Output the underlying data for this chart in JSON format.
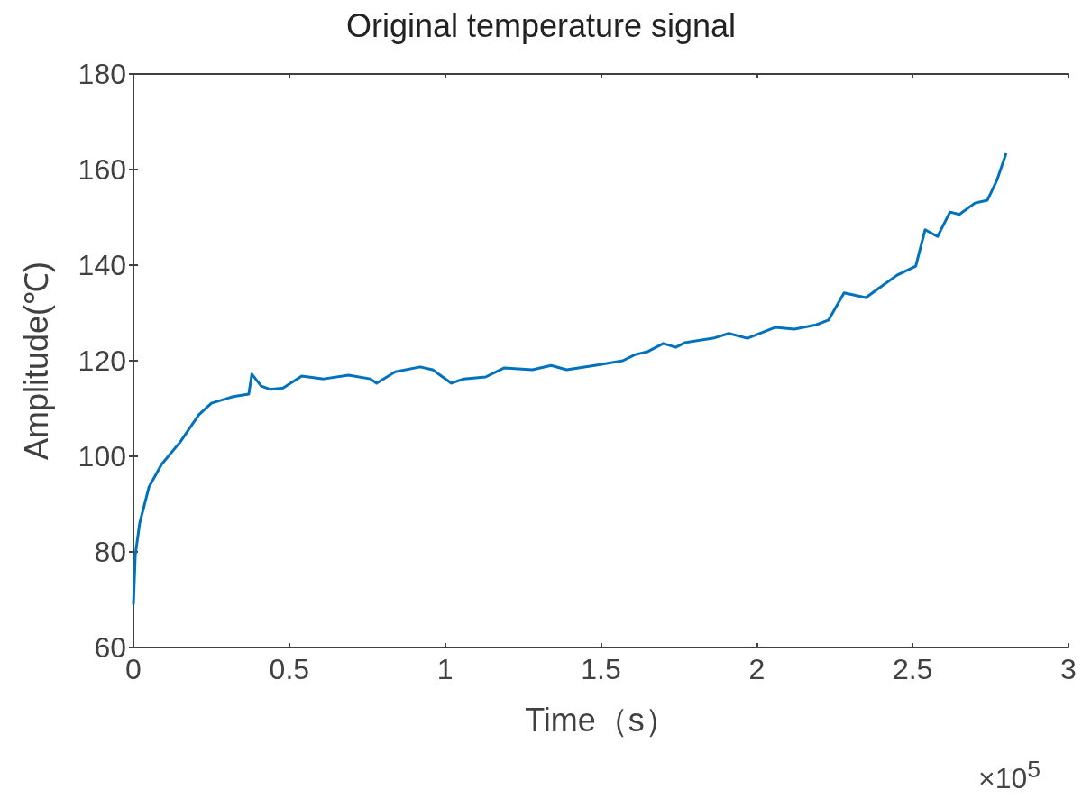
{
  "chart_data": {
    "type": "line",
    "title": "Original temperature signal",
    "xlabel": "Time（s）",
    "ylabel": "Amplitude(℃)",
    "annotations": [
      "×10$^{5}$"
    ],
    "x": [
      0,
      0.006,
      0.02,
      0.05,
      0.09,
      0.15,
      0.21,
      0.25,
      0.32,
      0.37,
      0.38,
      0.41,
      0.44,
      0.48,
      0.54,
      0.61,
      0.69,
      0.76,
      0.78,
      0.84,
      0.92,
      0.96,
      1.02,
      1.06,
      1.13,
      1.19,
      1.28,
      1.34,
      1.39,
      1.48,
      1.57,
      1.61,
      1.65,
      1.7,
      1.74,
      1.77,
      1.86,
      1.91,
      1.97,
      2.06,
      2.12,
      2.19,
      2.23,
      2.28,
      2.35,
      2.39,
      2.45,
      2.51,
      2.54,
      2.58,
      2.62,
      2.65,
      2.7,
      2.74,
      2.77,
      2.8
    ],
    "series": [
      {
        "color": "#0072bd",
        "values": [
          69,
          79.4,
          86,
          93.6,
          98.3,
          103,
          108.7,
          111.1,
          112.5,
          113,
          117.2,
          114.7,
          114,
          114.3,
          116.8,
          116.2,
          117,
          116.2,
          115.3,
          117.7,
          118.7,
          118.1,
          115.3,
          116.2,
          116.6,
          118.5,
          118.1,
          119,
          118.1,
          119,
          120,
          121.3,
          121.9,
          123.6,
          122.8,
          123.8,
          124.7,
          125.7,
          124.7,
          127,
          126.6,
          127.5,
          128.5,
          134.2,
          133.2,
          135.1,
          137.9,
          139.8,
          147.4,
          146,
          151.1,
          150.6,
          153,
          153.6,
          157.7,
          163.4
        ]
      }
    ],
    "xlim": [
      0,
      3
    ],
    "xticks": [
      0,
      0.5,
      1,
      1.5,
      2,
      2.5,
      3
    ],
    "ylim": [
      60,
      180
    ],
    "yticks": [
      60,
      80,
      100,
      120,
      140,
      160,
      180
    ],
    "grid": false,
    "marker": "none",
    "line_style": "solid"
  }
}
